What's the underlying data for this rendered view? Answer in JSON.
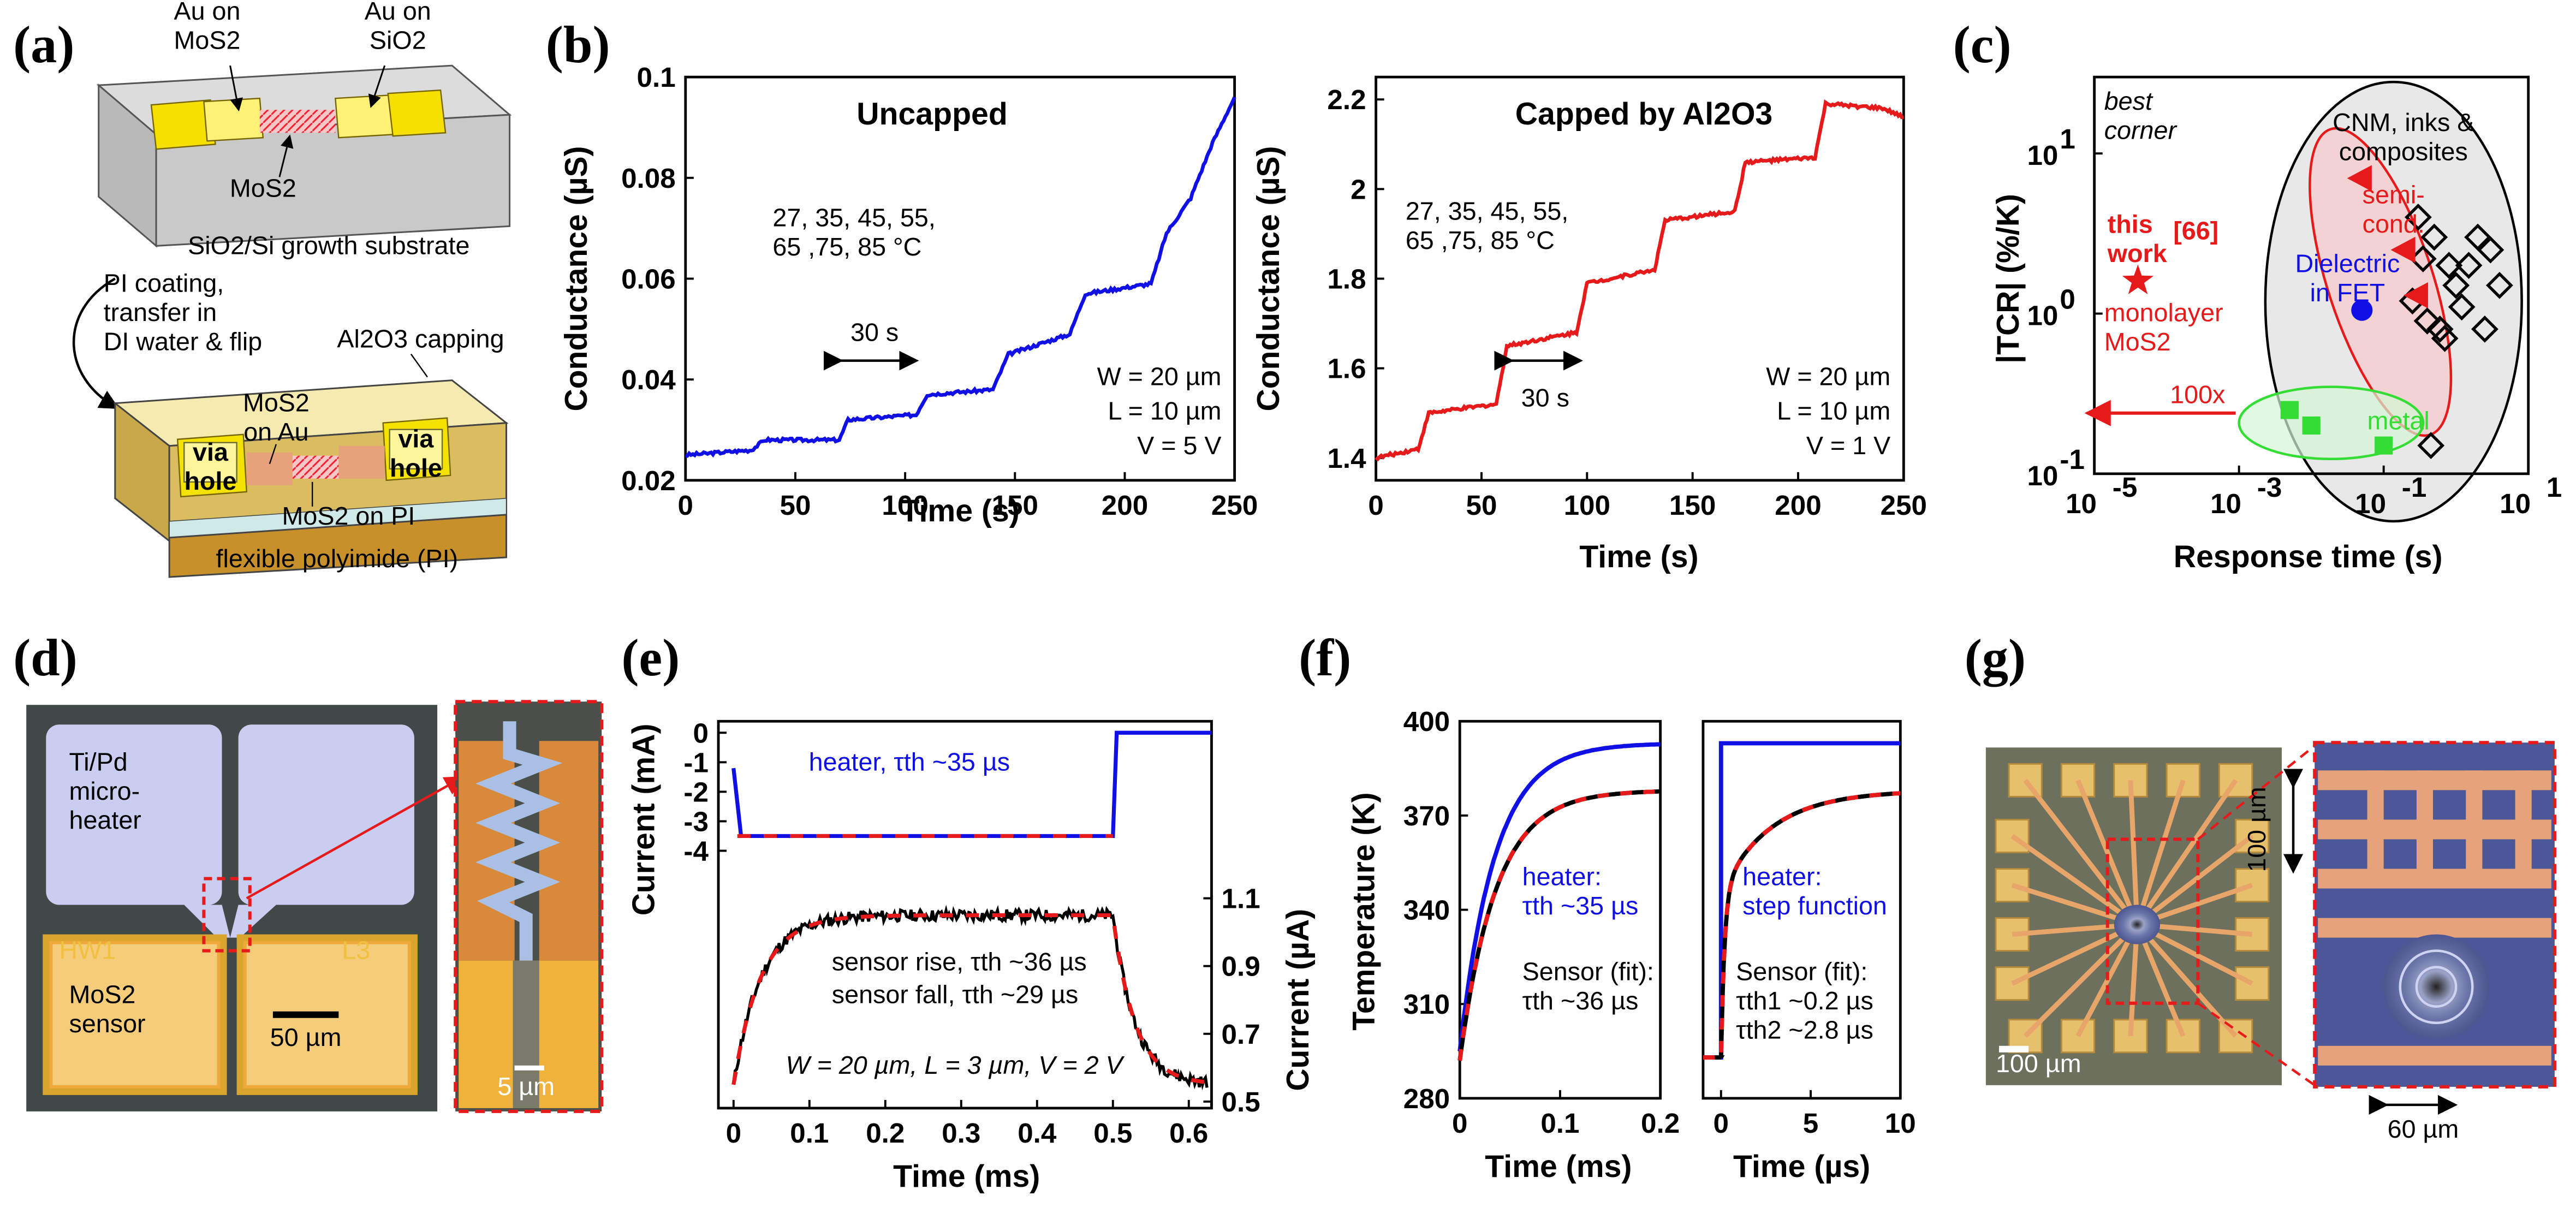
{
  "panel_labels": {
    "a": "(a)",
    "b": "(b)",
    "c": "(c)",
    "d": "(d)",
    "e": "(e)",
    "f": "(f)",
    "g": "(g)"
  },
  "colors": {
    "blue": "#1010e6",
    "red": "#e61a1a",
    "green": "#33dd33",
    "black": "#000000",
    "gold": "#e8d26a",
    "pi": "#c9a84a"
  },
  "panel_a": {
    "lbl_au_mos2": "Au on\nMoS2",
    "lbl_au_sio2": "Au on\nSiO2",
    "lbl_mos2": "MoS2",
    "lbl_substrate": "SiO2/Si growth substrate",
    "lbl_process": "PI coating,\ntransfer in\nDI water & flip",
    "lbl_capping": "Al2O3 capping",
    "lbl_via_left": "via\nhole",
    "lbl_via_right": "via\nhole",
    "lbl_mos2_on_au": "MoS2\non Au",
    "lbl_mos2_on_pi": "MoS2 on PI",
    "lbl_pi": "flexible polyimide (PI)"
  },
  "panel_b1": {
    "title": "Uncapped",
    "note": "27, 35, 45, 55,\n65 ,75, 85 °C",
    "arrow_label": "30 s",
    "params": [
      "W = 20 µm",
      "L = 10 µm",
      "V = 5 V"
    ]
  },
  "panel_b2": {
    "title": "Capped by Al2O3",
    "note": "27, 35, 45, 55,\n65 ,75, 85 °C",
    "arrow_label": "30 s",
    "params": [
      "W = 20 µm",
      "L = 10 µm",
      "V = 1 V"
    ]
  },
  "panel_c_text": {
    "best_corner": "best\ncorner",
    "cnm": "CNM, inks &\ncomposites",
    "semicond": "semi-\ncond.",
    "dielectric": "Dielectric\nin FET",
    "this_work": "this\nwork",
    "ref": "[66]",
    "monolayer": "monolayer\nMoS2",
    "factor": "100x",
    "metal": "metal"
  },
  "panel_d": {
    "heater": "Ti/Pd\nmicro-\nheater",
    "hw1": "HW1",
    "l3": "L3",
    "sensor": "MoS2\nsensor",
    "scale_main": "50 µm",
    "scale_zoom": "5 µm"
  },
  "panel_e_text": {
    "heater": "heater, τth ~35 µs",
    "rise": "sensor rise, τth ~36 µs",
    "fall": "sensor fall, τth ~29 µs",
    "params": "W = 20 µm, L = 3 µm, V = 2 V"
  },
  "panel_f_text": {
    "left_heater": "heater:\nτth ~35 µs",
    "left_sensor": "Sensor (fit):\nτth ~36 µs",
    "right_heater": "heater:\nstep function",
    "right_sensor": "Sensor (fit):\nτth1 ~0.2 µs\nτth2 ~2.8 µs"
  },
  "panel_g": {
    "scale": "100 µm",
    "zoom_v": "100 µm",
    "zoom_h": "60 µm"
  },
  "chart_data": [
    {
      "id": "b1",
      "type": "line",
      "title": "Uncapped",
      "xlabel": "Time (s)",
      "ylabel": "Conductance (µS)",
      "xlim": [
        0,
        250
      ],
      "ylim": [
        0.02,
        0.1
      ],
      "xticks": [
        "0",
        "50",
        "100",
        "150",
        "200",
        "250"
      ],
      "yticks": [
        "0.02",
        "0.04",
        "0.06",
        "0.08",
        "0.1"
      ],
      "series": [
        {
          "name": "conductance",
          "color": "blue",
          "x": [
            0,
            30,
            36,
            70,
            74,
            105,
            110,
            140,
            147,
            175,
            182,
            212,
            219,
            230,
            240,
            250
          ],
          "y": [
            0.025,
            0.026,
            0.028,
            0.028,
            0.032,
            0.033,
            0.037,
            0.038,
            0.045,
            0.049,
            0.057,
            0.059,
            0.069,
            0.076,
            0.087,
            0.096
          ]
        }
      ]
    },
    {
      "id": "b2",
      "type": "line",
      "title": "Capped by Al2O3",
      "xlabel": "Time (s)",
      "ylabel": "Conductance (µS)",
      "xlim": [
        0,
        250
      ],
      "ylim": [
        1.35,
        2.25
      ],
      "xticks": [
        "0",
        "50",
        "100",
        "150",
        "200",
        "250"
      ],
      "yticks": [
        "1.4",
        "1.6",
        "1.8",
        "2",
        "2.2"
      ],
      "series": [
        {
          "name": "conductance",
          "color": "red",
          "x": [
            0,
            20,
            25,
            57,
            62,
            95,
            100,
            132,
            137,
            170,
            175,
            208,
            213,
            240,
            250
          ],
          "y": [
            1.4,
            1.42,
            1.5,
            1.52,
            1.65,
            1.68,
            1.79,
            1.82,
            1.93,
            1.95,
            2.06,
            2.07,
            2.19,
            2.18,
            2.16
          ]
        }
      ]
    },
    {
      "id": "c",
      "type": "scatter",
      "xscale": "log",
      "yscale": "log",
      "xlabel": "Response time (s)",
      "ylabel": "|TCR| (%/K)",
      "xlim": [
        1e-05,
        10
      ],
      "ylim": [
        0.1,
        30
      ],
      "xticks": [
        "10",
        "10",
        "10",
        "10"
      ],
      "xtick_exp": [
        "-5",
        "-3",
        "-1",
        "1"
      ],
      "yticks": [
        "10",
        "10",
        "10"
      ],
      "ytick_exp": [
        "-1",
        "0",
        "1"
      ],
      "series": [
        {
          "name": "CNM, inks & composites",
          "marker": "diamond",
          "color": "black",
          "x": [
            0.3,
            0.5,
            0.8,
            1,
            1.5,
            2,
            3,
            4,
            0.25,
            0.4,
            0.6,
            2.5,
            0.35,
            0.7,
            1.2,
            0.45
          ],
          "y": [
            4,
            3,
            2,
            1.5,
            2,
            3,
            2.5,
            1.5,
            1.2,
            0.9,
            0.8,
            0.8,
            2.2,
            0.7,
            1.1,
            0.15
          ]
        },
        {
          "name": "semiconductor",
          "marker": "triangle",
          "color": "red",
          "x": [
            0.05,
            0.2,
            0.3
          ],
          "y": [
            7,
            2.5,
            1.3
          ]
        },
        {
          "name": "Dielectric in FET",
          "marker": "circle",
          "color": "blue",
          "x": [
            0.05
          ],
          "y": [
            1.05
          ]
        },
        {
          "name": "metal",
          "marker": "square",
          "color": "green",
          "x": [
            0.005,
            0.01,
            0.1
          ],
          "y": [
            0.25,
            0.2,
            0.15
          ]
        },
        {
          "name": "this work",
          "marker": "star",
          "color": "red",
          "x": [
            4e-05
          ],
          "y": [
            1.6
          ]
        }
      ]
    },
    {
      "id": "e",
      "type": "line",
      "xlabel": "Time (ms)",
      "ylabel": "Current (mA)",
      "y2label": "Current (µA)",
      "xlim": [
        -0.02,
        0.63
      ],
      "xticks": [
        "0",
        "0.1",
        "0.2",
        "0.3",
        "0.4",
        "0.5",
        "0.6"
      ],
      "yticks": [
        "0",
        "-1",
        "-2",
        "-3",
        "-4"
      ],
      "y2ticks": [
        "1.1",
        "0.9",
        "0.7",
        "0.5"
      ],
      "series": [
        {
          "name": "heater",
          "axis": "left",
          "color": "blue",
          "x": [
            0,
            0.01,
            0.5,
            0.505,
            0.63
          ],
          "y": [
            -1.2,
            -3.5,
            -3.5,
            0,
            0
          ]
        },
        {
          "name": "sensor",
          "axis": "right",
          "color": "black",
          "fit_color": "red",
          "rise_tau_us": 36,
          "fall_tau_us": 29,
          "y_start": 0.55,
          "y_plateau": 1.05,
          "t_off": 0.5
        }
      ]
    },
    {
      "id": "f1",
      "type": "line",
      "xlabel": "Time (ms)",
      "ylabel": "Temperature (K)",
      "xlim": [
        0,
        0.2
      ],
      "ylim": [
        280,
        400
      ],
      "xticks": [
        "0",
        "0.1",
        "0.2"
      ],
      "yticks": [
        "280",
        "310",
        "340",
        "370",
        "400"
      ],
      "series": [
        {
          "name": "heater",
          "color": "blue",
          "T0": 295,
          "Tmax": 393,
          "tau_us": 35
        },
        {
          "name": "sensor",
          "color": "black",
          "fit_color": "red",
          "T0": 292,
          "Tmax": 378,
          "tau_us": 36
        }
      ]
    },
    {
      "id": "f2",
      "type": "line",
      "xlabel": "Time (µs)",
      "xlim": [
        -1,
        10
      ],
      "ylim": [
        280,
        400
      ],
      "xticks": [
        "0",
        "5",
        "10"
      ],
      "series": [
        {
          "name": "heater",
          "color": "blue",
          "T0": 293,
          "Tmax": 393,
          "step": true
        },
        {
          "name": "sensor",
          "color": "black",
          "fit_color": "red",
          "T0": 293,
          "Tmax": 378,
          "tau1_us": 0.2,
          "tau2_us": 2.8
        }
      ]
    }
  ]
}
